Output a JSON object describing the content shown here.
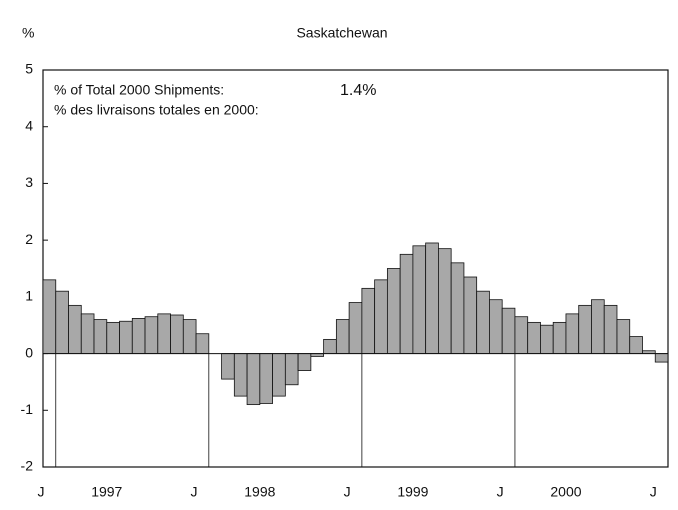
{
  "chart_data": {
    "type": "bar",
    "title": "Saskatchewan",
    "y_label": "%",
    "annotation": {
      "label_en": "% of Total 2000 Shipments:",
      "value": "1.4%",
      "label_fr": "% des livraisons totales en 2000:"
    },
    "categories": [
      "J",
      null,
      null,
      null,
      null,
      null,
      null,
      null,
      null,
      null,
      null,
      null,
      "J",
      null,
      null,
      null,
      null,
      null,
      null,
      null,
      null,
      null,
      null,
      null,
      "J",
      null,
      null,
      null,
      null,
      null,
      null,
      null,
      null,
      null,
      null,
      null,
      "J",
      null,
      null,
      null,
      null,
      null,
      null,
      null,
      null,
      null,
      null,
      null,
      "J"
    ],
    "year_labels": [
      "1997",
      "1998",
      "1999",
      "2000"
    ],
    "values": [
      1.3,
      1.1,
      0.85,
      0.7,
      0.6,
      0.55,
      0.57,
      0.62,
      0.65,
      0.7,
      0.68,
      0.6,
      0.35,
      0,
      -0.45,
      -0.75,
      -0.9,
      -0.88,
      -0.75,
      -0.55,
      -0.3,
      -0.05,
      0.25,
      0.6,
      0.9,
      1.15,
      1.3,
      1.5,
      1.75,
      1.9,
      1.95,
      1.85,
      1.6,
      1.35,
      1.1,
      0.95,
      0.8,
      0.65,
      0.55,
      0.5,
      0.55,
      0.7,
      0.85,
      0.95,
      0.85,
      0.6,
      0.3,
      0.05,
      -0.15
    ],
    "color": "#a8a8a8",
    "ylim": [
      -2,
      5
    ],
    "yticks": [
      -2,
      -1,
      0,
      1,
      2,
      3,
      4,
      5
    ]
  }
}
